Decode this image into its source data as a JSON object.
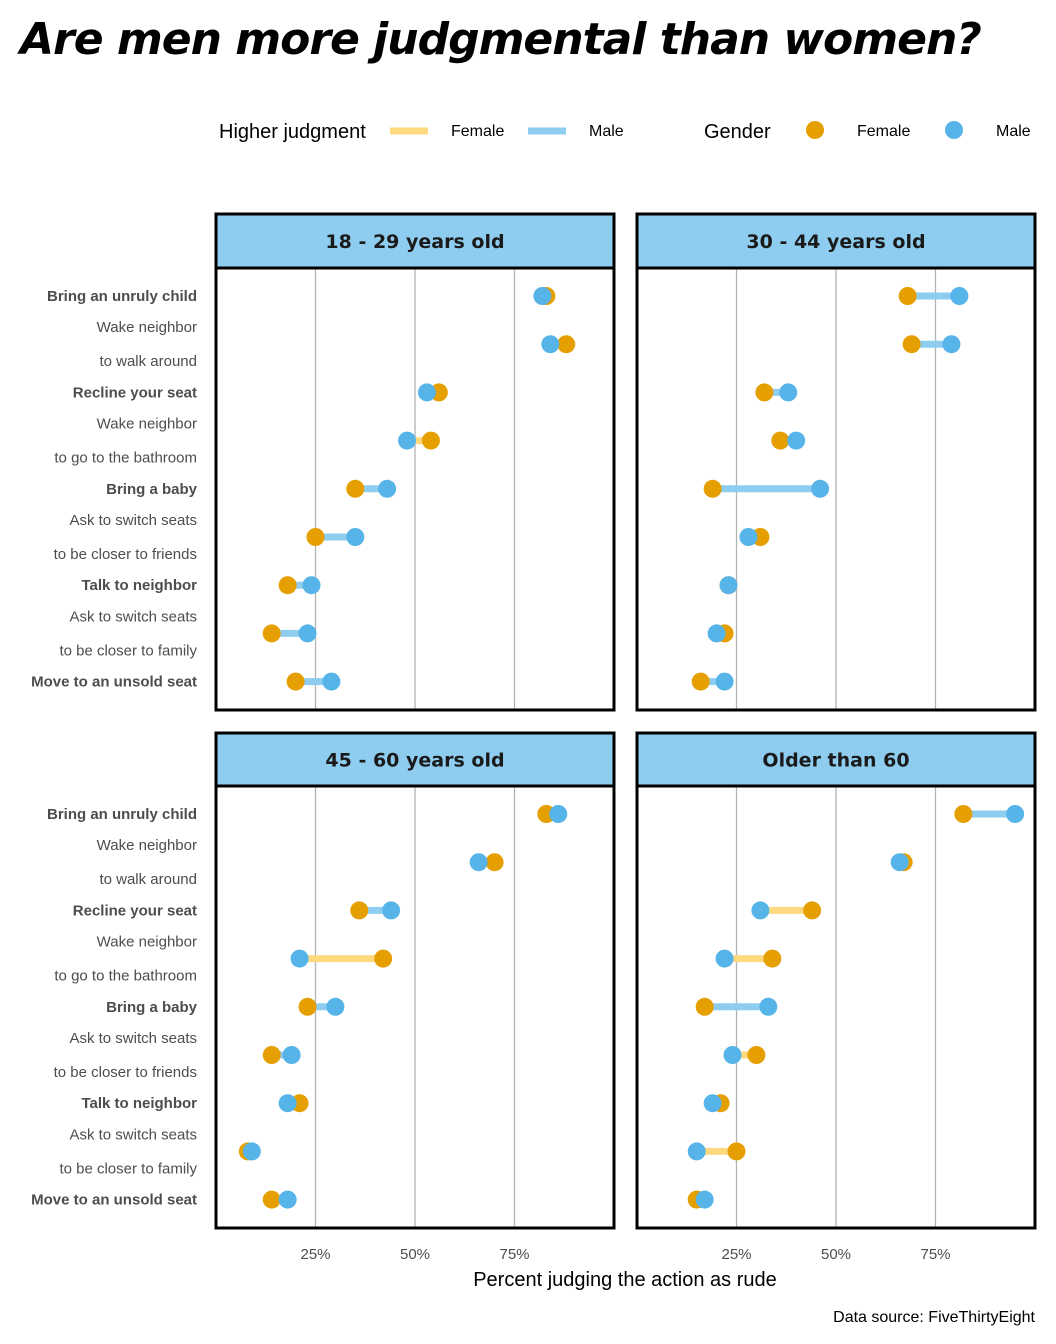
{
  "chart_data": {
    "type": "scatter",
    "subtype": "dumbbell",
    "title": "Are men more judgmental than women?",
    "xlabel": "Percent judging the action as rude",
    "caption": "Data source: FiveThirtyEight",
    "xlim": [
      0,
      100
    ],
    "xticks": [
      25,
      50,
      75
    ],
    "xtick_labels": [
      "25%",
      "50%",
      "75%"
    ],
    "grid": "vertical",
    "legend": {
      "placement": "top",
      "line": {
        "title": "Higher judgment",
        "items": [
          "Female",
          "Male"
        ]
      },
      "point": {
        "title": "Gender",
        "items": [
          "Female",
          "Male"
        ]
      }
    },
    "colors": {
      "female_point": "#E69F00",
      "male_point": "#56B4E9",
      "female_line": "#FFD97F",
      "male_line": "#8ECDF0",
      "strip_bg": "#8ECDF0"
    },
    "rows": [
      {
        "label": "Bring an unruly child",
        "bold": true,
        "plotted": true
      },
      {
        "label": "Wake neighbor",
        "bold": false,
        "plotted": false
      },
      {
        "label": "to walk around",
        "bold": false,
        "plotted": true
      },
      {
        "label": "Recline your seat",
        "bold": true,
        "plotted": true
      },
      {
        "label": "Wake neighbor",
        "bold": false,
        "plotted": false
      },
      {
        "label": "to go to the bathroom",
        "bold": false,
        "plotted": true
      },
      {
        "label": "Bring a baby",
        "bold": true,
        "plotted": true
      },
      {
        "label": "Ask to switch seats",
        "bold": false,
        "plotted": false
      },
      {
        "label": "to be closer to friends",
        "bold": false,
        "plotted": true
      },
      {
        "label": "Talk to neighbor",
        "bold": true,
        "plotted": true
      },
      {
        "label": "Ask to switch seats",
        "bold": false,
        "plotted": false
      },
      {
        "label": "to be closer to family",
        "bold": false,
        "plotted": true
      },
      {
        "label": "Move to an unsold seat",
        "bold": true,
        "plotted": true
      }
    ],
    "facets": [
      {
        "name": "18 - 29 years old",
        "female": [
          83,
          88,
          56,
          54,
          35,
          25,
          18,
          14,
          20
        ],
        "male": [
          82,
          84,
          53,
          48,
          43,
          35,
          24,
          23,
          29
        ]
      },
      {
        "name": "30 - 44 years old",
        "female": [
          68,
          69,
          32,
          36,
          19,
          31,
          23,
          22,
          16
        ],
        "male": [
          81,
          79,
          38,
          40,
          46,
          28,
          23,
          20,
          22
        ]
      },
      {
        "name": "45 - 60 years old",
        "female": [
          83,
          70,
          36,
          42,
          23,
          14,
          21,
          8,
          14
        ],
        "male": [
          86,
          66,
          44,
          21,
          30,
          19,
          18,
          9,
          18
        ]
      },
      {
        "name": "Older than 60",
        "female": [
          82,
          67,
          44,
          34,
          17,
          30,
          21,
          25,
          15
        ],
        "male": [
          95,
          66,
          31,
          22,
          33,
          24,
          19,
          15,
          17
        ]
      }
    ]
  }
}
